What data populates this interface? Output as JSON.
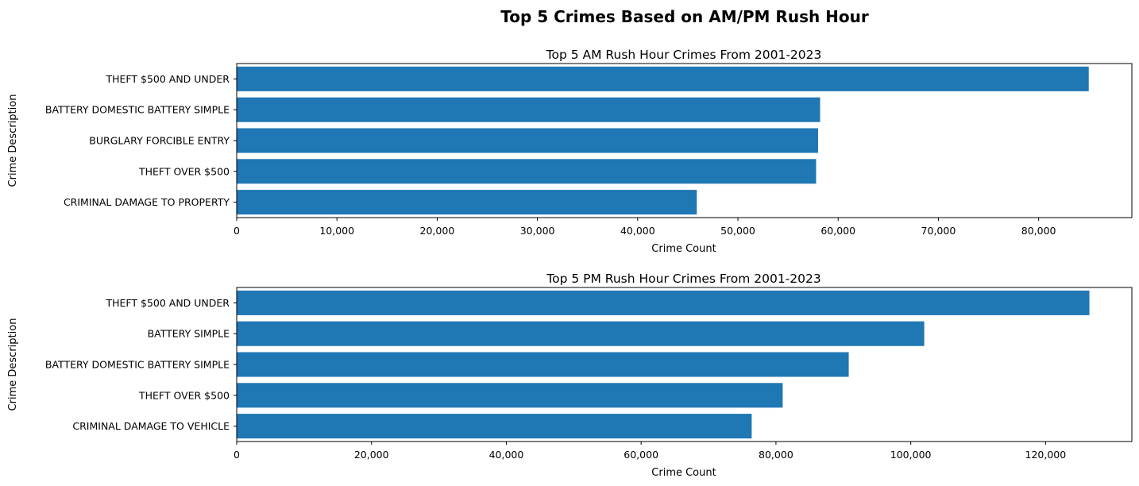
{
  "figure": {
    "suptitle": "Top 5 Crimes Based on AM/PM Rush Hour",
    "bar_color": "#1f77b4"
  },
  "chart_data": [
    {
      "type": "bar",
      "orientation": "horizontal",
      "title": "Top 5 AM Rush Hour Crimes From 2001-2023",
      "xlabel": "Crime Count",
      "ylabel": "Crime Description",
      "categories": [
        "THEFT $500 AND UNDER",
        "BATTERY DOMESTIC BATTERY SIMPLE",
        "BURGLARY FORCIBLE ENTRY",
        "THEFT OVER $500",
        "CRIMINAL DAMAGE TO PROPERTY"
      ],
      "values": [
        85000,
        58200,
        58000,
        57800,
        45900
      ],
      "xlim": [
        0,
        89300
      ],
      "xticks": [
        0,
        10000,
        20000,
        30000,
        40000,
        50000,
        60000,
        70000,
        80000
      ],
      "xtick_labels": [
        "0",
        "10,000",
        "20,000",
        "30,000",
        "40,000",
        "50,000",
        "60,000",
        "70,000",
        "80,000"
      ],
      "grid": false,
      "legend": "none"
    },
    {
      "type": "bar",
      "orientation": "horizontal",
      "title": "Top 5 PM Rush Hour Crimes From 2001-2023",
      "xlabel": "Crime Count",
      "ylabel": "Crime Description",
      "categories": [
        "THEFT $500 AND UNDER",
        "BATTERY SIMPLE",
        "BATTERY DOMESTIC BATTERY SIMPLE",
        "THEFT OVER $500",
        "CRIMINAL DAMAGE TO VEHICLE"
      ],
      "values": [
        126500,
        102000,
        90800,
        81000,
        76400
      ],
      "xlim": [
        0,
        132800
      ],
      "xticks": [
        0,
        20000,
        40000,
        60000,
        80000,
        100000,
        120000
      ],
      "xtick_labels": [
        "0",
        "20,000",
        "40,000",
        "60,000",
        "80,000",
        "100,000",
        "120,000"
      ],
      "grid": false,
      "legend": "none"
    }
  ]
}
